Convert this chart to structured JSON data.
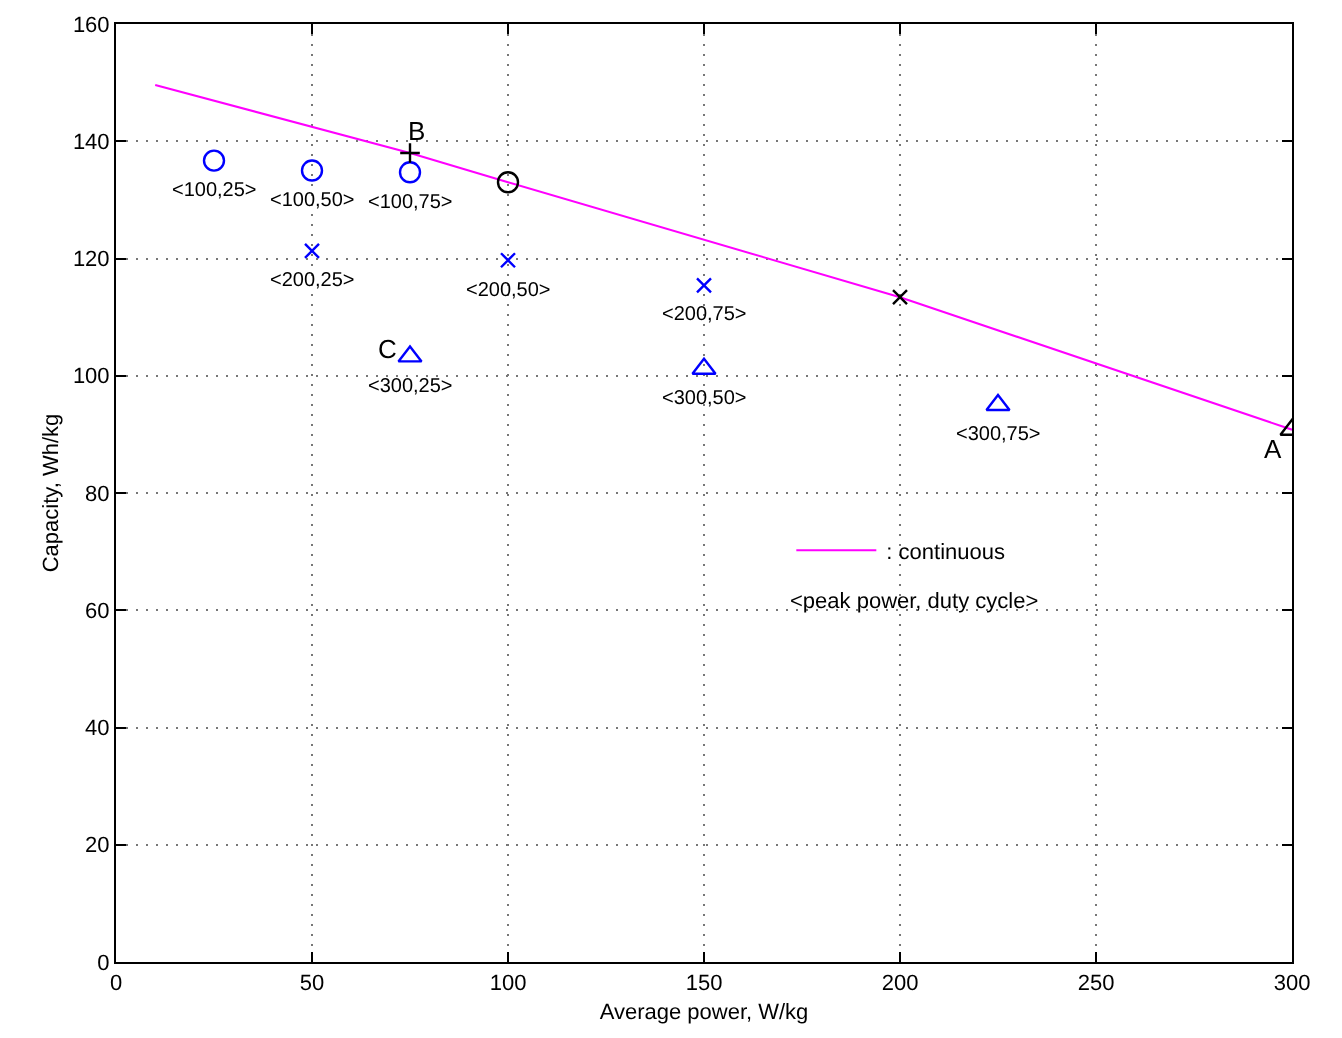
{
  "chart_data": {
    "type": "scatter",
    "xlabel": "Average power, W/kg",
    "ylabel": "Capacity, Wh/kg",
    "xlim": [
      0,
      300
    ],
    "xticks": [
      0,
      50,
      100,
      150,
      200,
      250,
      300
    ],
    "ylim": [
      0,
      160
    ],
    "yticks": [
      0,
      20,
      40,
      60,
      80,
      100,
      120,
      140,
      160
    ],
    "grid": true,
    "legend": "right",
    "series": [
      {
        "name": ": continuous",
        "type": "line",
        "color": "#ff00ff",
        "marker": "none",
        "line_style": "solid",
        "x": [
          10,
          75,
          100,
          200,
          300
        ],
        "values": [
          149.6,
          138,
          133,
          113.4,
          90.8
        ]
      },
      {
        "color": "#0000ff",
        "marker": "circle",
        "x": [
          25,
          50,
          75
        ],
        "values": [
          136.7,
          135,
          134.7
        ]
      },
      {
        "color": "#0000ff",
        "marker": "cross",
        "x": [
          50,
          100,
          150
        ],
        "values": [
          121.3,
          119.7,
          115.4
        ]
      },
      {
        "color": "#0000ff",
        "marker": "triangle",
        "x": [
          75,
          150,
          225
        ],
        "values": [
          103.3,
          101.2,
          95
        ]
      },
      {
        "color": "#000000",
        "marker": "circle",
        "x": [
          100
        ],
        "values": [
          133
        ]
      },
      {
        "color": "#000000",
        "marker": "plus",
        "x": [
          75
        ],
        "values": [
          138
        ]
      },
      {
        "color": "#000000",
        "marker": "cross",
        "x": [
          200
        ],
        "values": [
          113.4
        ]
      },
      {
        "color": "#000000",
        "marker": "triangle",
        "x": [
          300
        ],
        "values": [
          90.8
        ]
      }
    ],
    "annotations": [
      {
        "text": "<100,25>",
        "x": 25,
        "y": 136.7
      },
      {
        "text": "<100,50>",
        "x": 50,
        "y": 135
      },
      {
        "text": "<100,75>",
        "x": 75,
        "y": 134.7
      },
      {
        "text": "<200,25>",
        "x": 50,
        "y": 121.3
      },
      {
        "text": "<200,50>",
        "x": 100,
        "y": 119.7
      },
      {
        "text": "<200,75>",
        "x": 150,
        "y": 115.4
      },
      {
        "text": "<300,25>",
        "x": 75,
        "y": 103.3
      },
      {
        "text": "<300,50>",
        "x": 150,
        "y": 101.2
      },
      {
        "text": "<300,75>",
        "x": 225,
        "y": 95
      },
      {
        "text": "B",
        "x": 75,
        "y": 138
      },
      {
        "text": "C",
        "x": 75,
        "y": 103.3
      },
      {
        "text": "A",
        "x": 300,
        "y": 90.8
      },
      "<peak power, duty cycle>"
    ]
  }
}
